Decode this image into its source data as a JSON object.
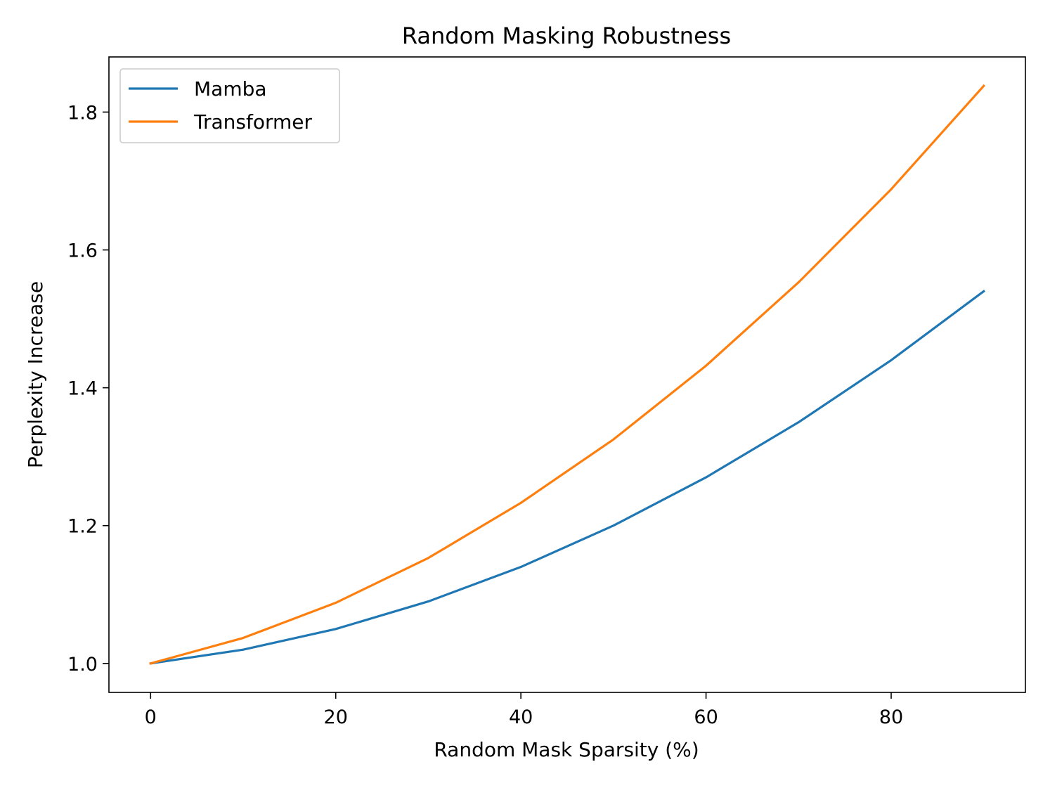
{
  "chart_data": {
    "type": "line",
    "title": "Random Masking Robustness",
    "xlabel": "Random Mask Sparsity (%)",
    "ylabel": "Perplexity Increase",
    "x": [
      0,
      10,
      20,
      30,
      40,
      50,
      60,
      70,
      80,
      90
    ],
    "series": [
      {
        "name": "Mamba",
        "color": "#1f77b4",
        "values": [
          1.0,
          1.02,
          1.05,
          1.09,
          1.14,
          1.2,
          1.27,
          1.35,
          1.44,
          1.54
        ]
      },
      {
        "name": "Transformer",
        "color": "#ff7f0e",
        "values": [
          1.0,
          1.037,
          1.088,
          1.153,
          1.233,
          1.325,
          1.432,
          1.553,
          1.688,
          1.838
        ]
      }
    ],
    "xlim": [
      -4.5,
      94.5
    ],
    "ylim": [
      0.958,
      1.88
    ],
    "xticks": [
      0,
      20,
      40,
      60,
      80
    ],
    "yticks": [
      1.0,
      1.2,
      1.4,
      1.6,
      1.8
    ],
    "grid": false,
    "legend_position": "upper left"
  }
}
